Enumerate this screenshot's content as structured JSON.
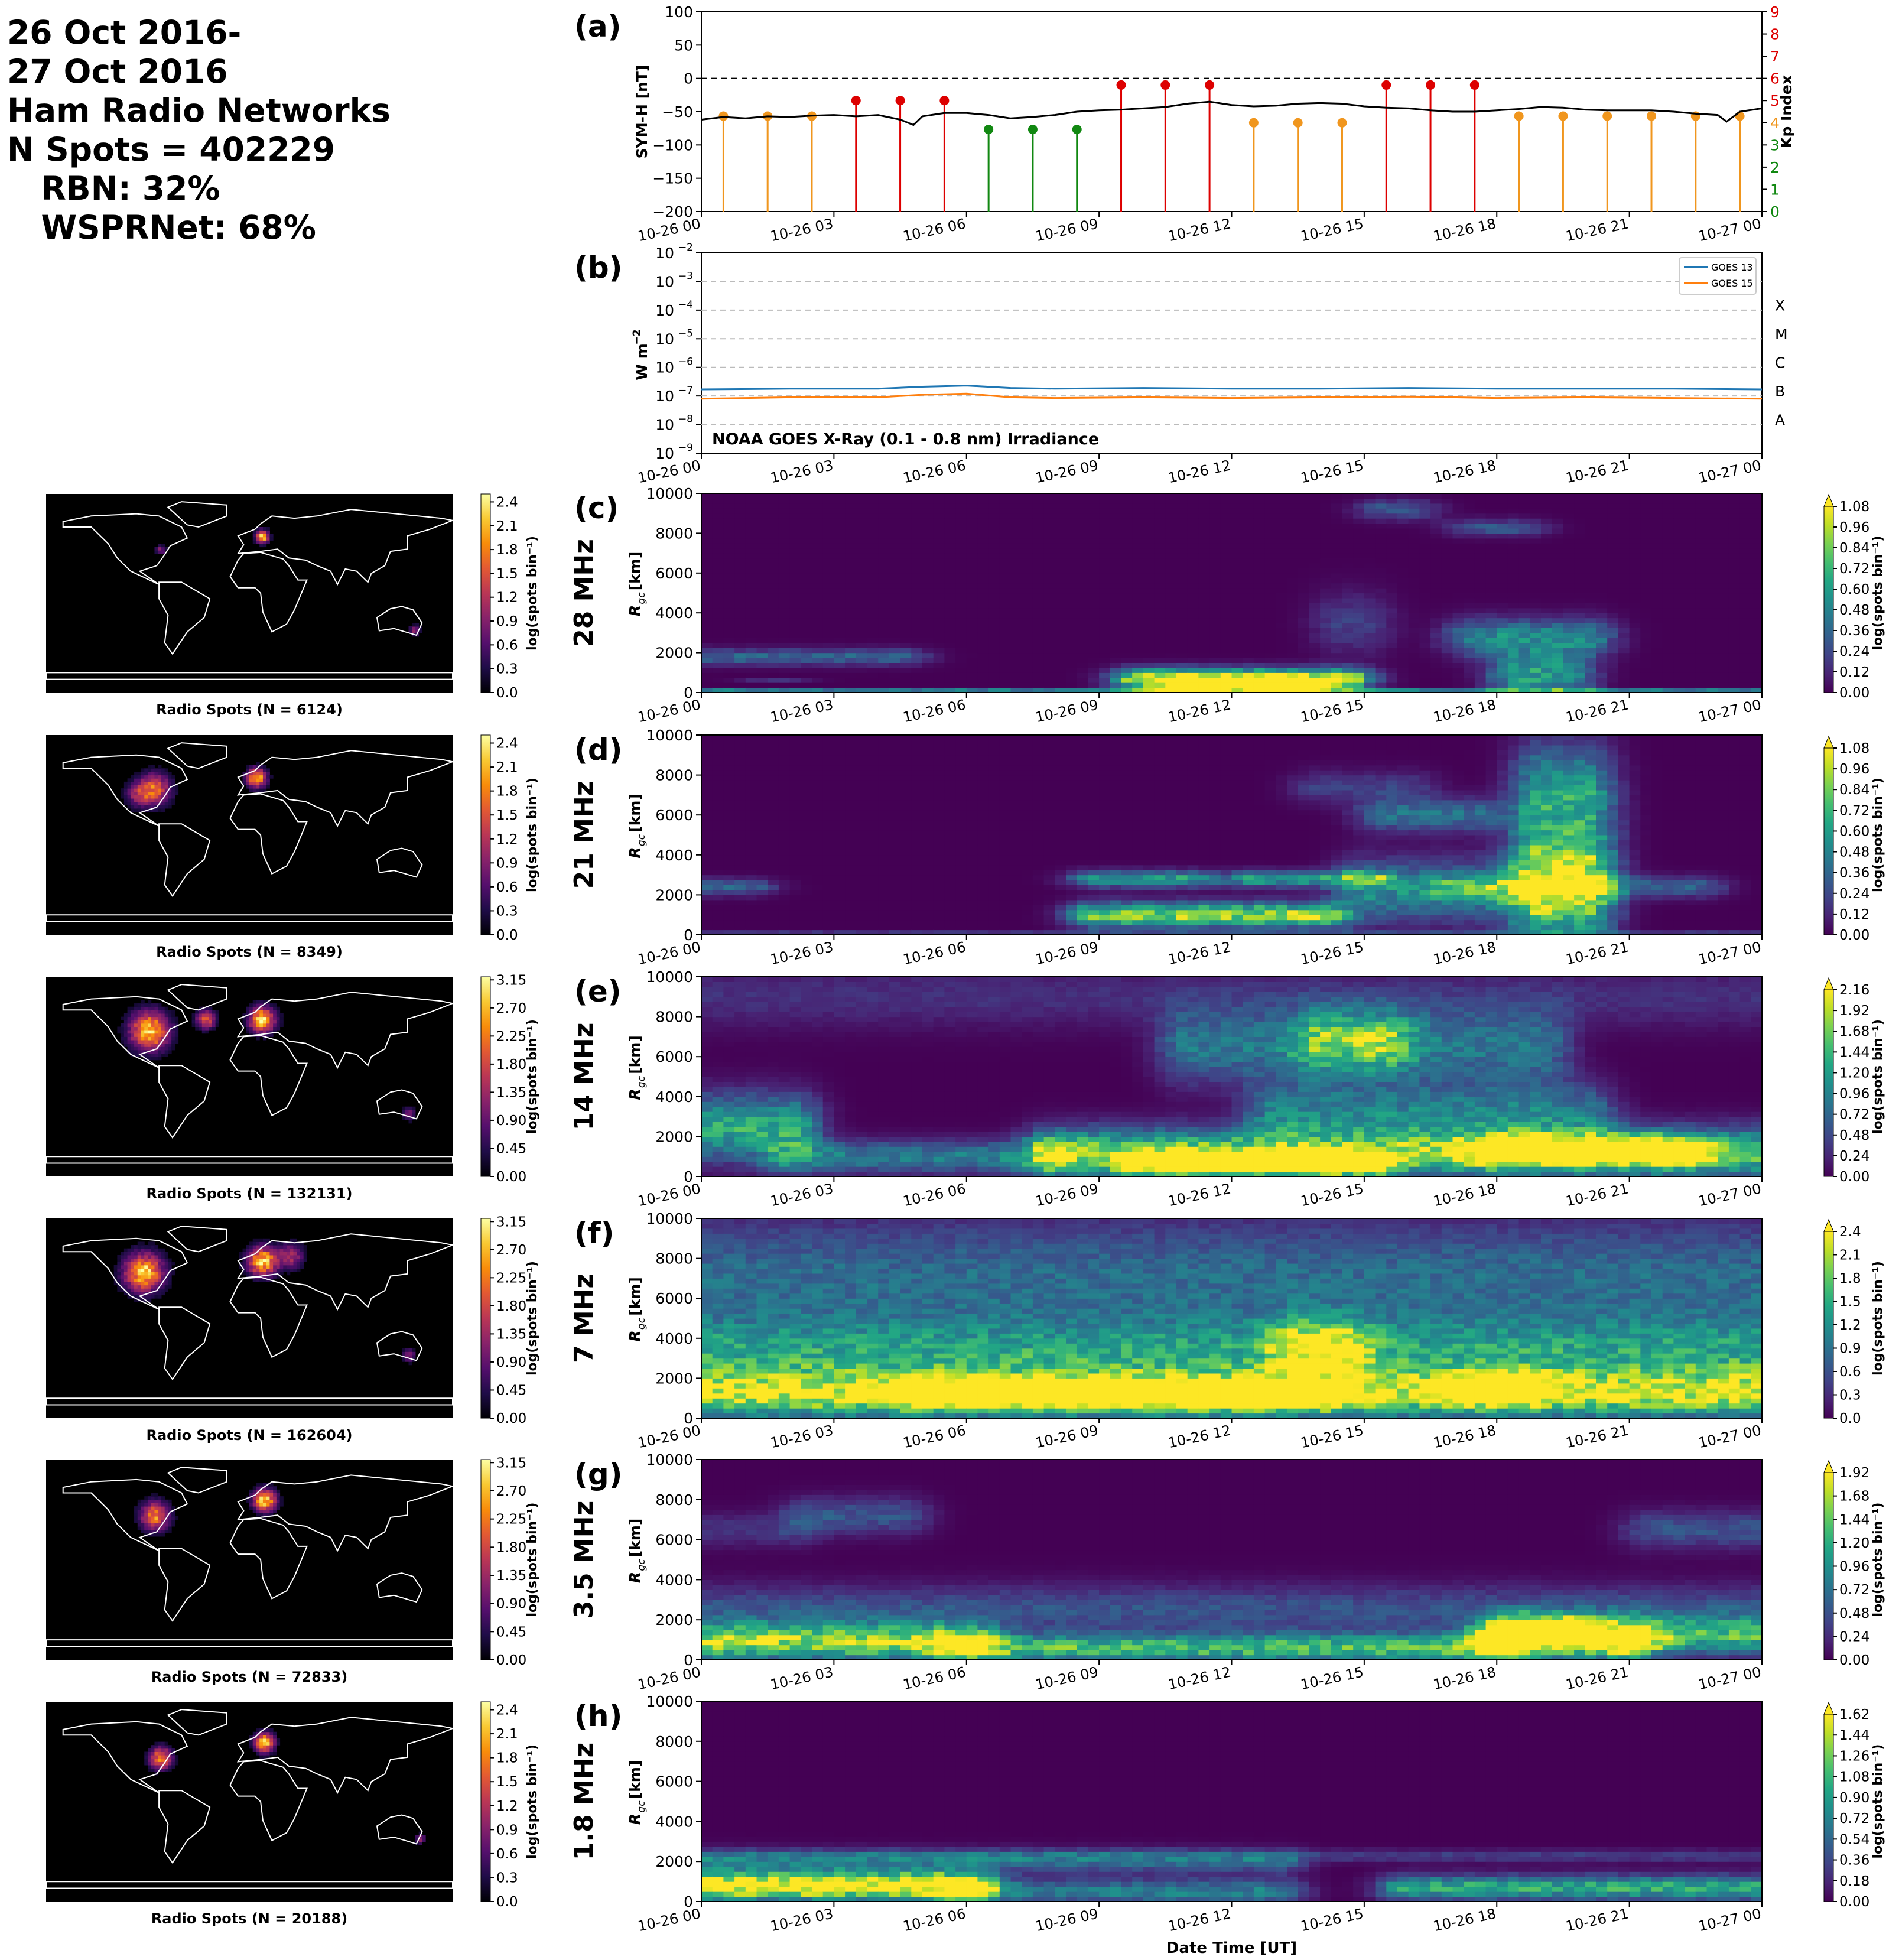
{
  "header": {
    "line1": "26 Oct 2016-",
    "line2": "27 Oct 2016",
    "line3": "Ham Radio Networks",
    "line4": "N Spots = 402229",
    "line5": "   RBN: 32%",
    "line6": "   WSPRNet: 68%"
  },
  "time_ticks": [
    "10-26 00",
    "10-26 03",
    "10-26 06",
    "10-26 09",
    "10-26 12",
    "10-26 15",
    "10-26 18",
    "10-26 21",
    "10-27 00"
  ],
  "xlabel": "Date Time [UT]",
  "colors": {
    "kp_red": "#dd0000",
    "kp_orange": "#f0961e",
    "kp_green": "#118811",
    "goes13": "#1f77b4",
    "goes15": "#ff7f0e"
  },
  "chart_data": [
    {
      "panel": "(a)",
      "type": "line",
      "ylabel": "SYM-H [nT]",
      "ylim": [
        -200,
        100
      ],
      "yticks": [
        100,
        50,
        0,
        -50,
        -100,
        -150,
        -200
      ],
      "y2label": "Kp Index",
      "y2lim": [
        0,
        9
      ],
      "y2ticks": [
        0,
        1,
        2,
        3,
        4,
        5,
        6,
        7,
        8,
        9
      ],
      "xlim_hours": [
        0,
        24
      ],
      "symh": {
        "x_hours": [
          0,
          0.5,
          1,
          1.5,
          2,
          2.5,
          3,
          3.5,
          4,
          4.5,
          4.8,
          5,
          5.5,
          6,
          6.5,
          7,
          7.5,
          8,
          8.5,
          9,
          9.5,
          10,
          10.5,
          11,
          11.5,
          12,
          12.5,
          13,
          13.5,
          14,
          14.5,
          15,
          15.5,
          16,
          16.5,
          17,
          17.5,
          18,
          18.5,
          19,
          19.5,
          20,
          20.5,
          21,
          21.5,
          22,
          22.5,
          23,
          23.2,
          23.5,
          24
        ],
        "values": [
          -62,
          -58,
          -60,
          -57,
          -58,
          -56,
          -55,
          -57,
          -55,
          -62,
          -70,
          -57,
          -52,
          -52,
          -55,
          -60,
          -58,
          -55,
          -50,
          -48,
          -47,
          -45,
          -43,
          -38,
          -35,
          -40,
          -42,
          -41,
          -38,
          -37,
          -38,
          -42,
          -44,
          -45,
          -48,
          -50,
          -50,
          -48,
          -46,
          -43,
          -44,
          -47,
          -48,
          -48,
          -48,
          -50,
          -53,
          -55,
          -65,
          -50,
          -45
        ]
      },
      "kp": {
        "x_hours": [
          0,
          1,
          2,
          3,
          4,
          5,
          6,
          7,
          8,
          9,
          10,
          11,
          12,
          13,
          14,
          15,
          16,
          17,
          18,
          19,
          20,
          21,
          22,
          23
        ],
        "values": [
          4.3,
          4.3,
          4.3,
          5.0,
          5.0,
          5.0,
          3.7,
          3.7,
          3.7,
          5.7,
          5.7,
          5.7,
          4.0,
          4.0,
          4.0,
          5.7,
          5.7,
          5.7,
          4.3,
          4.3,
          4.3,
          4.3,
          4.3,
          4.3
        ]
      }
    },
    {
      "panel": "(b)",
      "type": "line",
      "title": "NOAA GOES X-Ray (0.1 - 0.8 nm) Irradiance",
      "ylabel": "W m$^{-2}$",
      "yscale": "log",
      "ylim": [
        1e-09,
        0.01
      ],
      "yticks_exp": [
        -2,
        -3,
        -4,
        -5,
        -6,
        -7,
        -8,
        -9
      ],
      "flare_classes": [
        "X",
        "M",
        "C",
        "B",
        "A"
      ],
      "series": [
        {
          "name": "GOES 13",
          "x_hours": [
            0,
            2,
            4,
            5,
            6,
            7,
            8,
            10,
            12,
            14,
            16,
            18,
            20,
            22,
            24
          ],
          "values": [
            1.7e-07,
            1.8e-07,
            1.8e-07,
            2.1e-07,
            2.3e-07,
            1.9e-07,
            1.8e-07,
            1.9e-07,
            1.8e-07,
            1.8e-07,
            1.9e-07,
            1.8e-07,
            1.8e-07,
            1.8e-07,
            1.7e-07
          ]
        },
        {
          "name": "GOES 15",
          "x_hours": [
            0,
            2,
            4,
            5,
            6,
            7,
            8,
            10,
            12,
            14,
            16,
            18,
            20,
            22,
            24
          ],
          "values": [
            8e-08,
            9e-08,
            9e-08,
            1.1e-07,
            1.2e-07,
            9e-08,
            8.5e-08,
            9e-08,
            8.5e-08,
            9e-08,
            9.5e-08,
            8.5e-08,
            9e-08,
            8.5e-08,
            8e-08
          ]
        }
      ]
    },
    {
      "panel": "(c)",
      "type": "heatmap",
      "band": "28 MHz",
      "ylabel": "R_gc [km]",
      "ylim": [
        0,
        10000
      ],
      "yticks": [
        0,
        2000,
        4000,
        6000,
        8000,
        10000
      ],
      "clim": [
        0.0,
        1.08
      ],
      "cticks": [
        "0.00",
        "0.12",
        "0.24",
        "0.36",
        "0.48",
        "0.60",
        "0.72",
        "0.84",
        "0.96",
        "1.08"
      ],
      "clabel": "log(spots bin$^{-1}$)",
      "map_caption": "Radio Spots (N = 6124)",
      "map_cticks": [
        "0.0",
        "0.3",
        "0.6",
        "0.9",
        "1.2",
        "1.5",
        "1.8",
        "2.1",
        "2.4"
      ],
      "map_cmax": 2.5,
      "blobs": [
        [
          0,
          4.5,
          1800,
          400,
          0.35
        ],
        [
          1.5,
          1.8,
          600,
          100,
          0.15
        ],
        [
          10,
          14.5,
          700,
          500,
          1.1
        ],
        [
          11,
          13.5,
          400,
          300,
          1.1
        ],
        [
          14.5,
          15,
          3500,
          1500,
          0.2
        ],
        [
          17.5,
          20,
          2800,
          900,
          0.5
        ],
        [
          18.5,
          19.5,
          900,
          1200,
          0.6
        ],
        [
          15.5,
          16,
          9200,
          500,
          0.3
        ],
        [
          17.5,
          18.5,
          8300,
          400,
          0.3
        ],
        [
          0,
          24,
          80,
          80,
          0.6
        ]
      ]
    },
    {
      "panel": "(d)",
      "type": "heatmap",
      "band": "21 MHz",
      "ylabel": "R_gc [km]",
      "ylim": [
        0,
        10000
      ],
      "yticks": [
        0,
        2000,
        4000,
        6000,
        8000,
        10000
      ],
      "clim": [
        0.0,
        1.08
      ],
      "cticks": [
        "0.00",
        "0.12",
        "0.24",
        "0.36",
        "0.48",
        "0.60",
        "0.72",
        "0.84",
        "0.96",
        "1.08"
      ],
      "clabel": "log(spots bin$^{-1}$)",
      "map_caption": "Radio Spots (N = 8349)",
      "map_cticks": [
        "0.0",
        "0.3",
        "0.6",
        "0.9",
        "1.2",
        "1.5",
        "1.8",
        "2.1",
        "2.4"
      ],
      "map_cmax": 2.5,
      "blobs": [
        [
          0,
          1,
          2400,
          400,
          0.35
        ],
        [
          9,
          14,
          1000,
          600,
          0.9
        ],
        [
          9,
          11,
          2800,
          400,
          0.6
        ],
        [
          12.5,
          15,
          2800,
          400,
          0.6
        ],
        [
          15,
          18,
          2200,
          1500,
          0.5
        ],
        [
          17,
          22.5,
          2400,
          500,
          0.35
        ],
        [
          19,
          20,
          2500,
          2500,
          1.1
        ],
        [
          19,
          20,
          7000,
          2500,
          0.6
        ],
        [
          15.5,
          17.5,
          6000,
          800,
          0.4
        ],
        [
          14,
          16,
          7400,
          800,
          0.2
        ],
        [
          0,
          24,
          60,
          60,
          0.5
        ]
      ]
    },
    {
      "panel": "(e)",
      "type": "heatmap",
      "band": "14 MHz",
      "ylabel": "R_gc [km]",
      "ylim": [
        0,
        10000
      ],
      "yticks": [
        0,
        2000,
        4000,
        6000,
        8000,
        10000
      ],
      "clim": [
        0.0,
        2.16
      ],
      "cticks": [
        "0.00",
        "0.24",
        "0.48",
        "0.72",
        "0.96",
        "1.20",
        "1.44",
        "1.68",
        "1.92",
        "2.16"
      ],
      "clabel": "log(spots bin$^{-1}$)",
      "map_caption": "Radio Spots (N = 132131)",
      "map_cticks": [
        "0.00",
        "0.45",
        "0.90",
        "1.35",
        "1.80",
        "2.25",
        "2.70",
        "3.15"
      ],
      "map_cmax": 3.2,
      "blobs": [
        [
          0,
          2,
          2500,
          1600,
          1.3
        ],
        [
          2,
          8,
          1000,
          800,
          0.9
        ],
        [
          8,
          24,
          1200,
          1200,
          1.6
        ],
        [
          10,
          15,
          700,
          600,
          2.2
        ],
        [
          18,
          22,
          1300,
          700,
          2.0
        ],
        [
          13,
          20,
          3200,
          1500,
          0.9
        ],
        [
          11,
          19,
          6500,
          1800,
          0.85
        ],
        [
          14,
          15.5,
          6800,
          1500,
          1.0
        ],
        [
          0,
          24,
          9000,
          1500,
          0.3
        ]
      ]
    },
    {
      "panel": "(f)",
      "type": "heatmap",
      "band": "7 MHz",
      "ylabel": "R_gc [km]",
      "ylim": [
        0,
        10000
      ],
      "yticks": [
        0,
        2000,
        4000,
        6000,
        8000,
        10000
      ],
      "clim": [
        0.0,
        2.4
      ],
      "cticks": [
        "0.0",
        "0.3",
        "0.6",
        "0.9",
        "1.2",
        "1.5",
        "1.8",
        "2.1",
        "2.4"
      ],
      "clabel": "log(spots bin$^{-1}$)",
      "map_caption": "Radio Spots (N = 162604)",
      "map_cticks": [
        "0.00",
        "0.45",
        "0.90",
        "1.35",
        "1.80",
        "2.25",
        "2.70",
        "3.15"
      ],
      "map_cmax": 3.2,
      "blobs": [
        [
          0,
          24,
          1200,
          1200,
          2.0
        ],
        [
          0,
          24,
          3200,
          1800,
          1.2
        ],
        [
          0,
          24,
          7000,
          3000,
          0.85
        ],
        [
          5,
          14,
          1200,
          600,
          2.4
        ],
        [
          17.5,
          18.5,
          1500,
          700,
          2.3
        ],
        [
          13.5,
          14.5,
          3500,
          1500,
          1.3
        ]
      ]
    },
    {
      "panel": "(g)",
      "type": "heatmap",
      "band": "3.5 MHz",
      "ylabel": "R_gc [km]",
      "ylim": [
        0,
        10000
      ],
      "yticks": [
        0,
        2000,
        4000,
        6000,
        8000,
        10000
      ],
      "clim": [
        0.0,
        1.92
      ],
      "cticks": [
        "0.00",
        "0.24",
        "0.48",
        "0.72",
        "0.96",
        "1.20",
        "1.44",
        "1.68",
        "1.92"
      ],
      "clabel": "log(spots bin$^{-1}$)",
      "map_caption": "Radio Spots (N = 72833)",
      "map_cticks": [
        "0.00",
        "0.45",
        "0.90",
        "1.35",
        "1.80",
        "2.25",
        "2.70",
        "3.15"
      ],
      "map_cmax": 3.2,
      "blobs": [
        [
          0,
          6,
          900,
          900,
          1.6
        ],
        [
          6,
          18,
          600,
          700,
          1.3
        ],
        [
          18,
          21,
          1000,
          900,
          1.8
        ],
        [
          18.5,
          19.5,
          1500,
          700,
          2.0
        ],
        [
          21,
          24,
          1200,
          900,
          1.2
        ],
        [
          0,
          24,
          2500,
          1200,
          0.5
        ],
        [
          2.5,
          4.5,
          7200,
          900,
          0.5
        ],
        [
          21.5,
          24,
          6500,
          900,
          0.5
        ],
        [
          0,
          2,
          6500,
          800,
          0.3
        ]
      ]
    },
    {
      "panel": "(h)",
      "type": "heatmap",
      "band": "1.8 MHz",
      "ylabel": "R_gc [km]",
      "ylim": [
        0,
        10000
      ],
      "yticks": [
        0,
        2000,
        4000,
        6000,
        8000,
        10000
      ],
      "clim": [
        0.0,
        1.62
      ],
      "cticks": [
        "0.00",
        "0.18",
        "0.36",
        "0.54",
        "0.72",
        "0.90",
        "1.08",
        "1.26",
        "1.44",
        "1.62"
      ],
      "clabel": "log(spots bin$^{-1}$)",
      "map_caption": "Radio Spots (N = 20188)",
      "map_cticks": [
        "0.0",
        "0.3",
        "0.6",
        "0.9",
        "1.2",
        "1.5",
        "1.8",
        "2.1",
        "2.4"
      ],
      "map_cmax": 2.5,
      "blobs": [
        [
          0,
          6,
          800,
          700,
          1.8
        ],
        [
          0,
          13,
          2000,
          600,
          0.5
        ],
        [
          6,
          13,
          500,
          600,
          0.7
        ],
        [
          16,
          24,
          700,
          600,
          1.0
        ],
        [
          0,
          24,
          2300,
          300,
          0.3
        ]
      ]
    }
  ]
}
